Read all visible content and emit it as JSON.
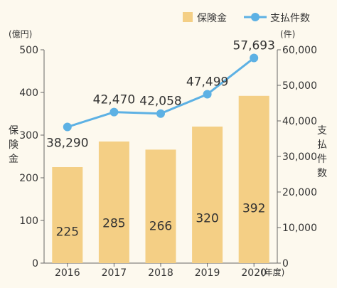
{
  "chart_data": {
    "type": "bar+line",
    "categories": [
      "2016",
      "2017",
      "2018",
      "2019",
      "2020"
    ],
    "x_unit": "(年度)",
    "series": [
      {
        "name": "保険金",
        "kind": "bar",
        "axis": "left",
        "values": [
          225,
          285,
          266,
          320,
          392
        ],
        "value_labels": [
          "225",
          "285",
          "266",
          "320",
          "392"
        ],
        "color": "#f4cf85"
      },
      {
        "name": "支払件数",
        "kind": "line",
        "axis": "right",
        "values": [
          38290,
          42470,
          42058,
          47499,
          57693
        ],
        "value_labels": [
          "38,290",
          "42,470",
          "42,058",
          "47,499",
          "57,693"
        ],
        "color": "#5db1e4"
      }
    ],
    "left_axis": {
      "unit": "(億円)",
      "title_chars": [
        "保",
        "険",
        "金"
      ],
      "ylim": [
        0,
        500
      ],
      "ticks": [
        0,
        100,
        200,
        300,
        400,
        500
      ],
      "tick_labels": [
        "0",
        "100",
        "200",
        "300",
        "400",
        "500"
      ]
    },
    "right_axis": {
      "unit": "(件)",
      "title_chars": [
        "支",
        "払",
        "件",
        "数"
      ],
      "ylim": [
        0,
        60000
      ],
      "ticks": [
        0,
        10000,
        20000,
        30000,
        40000,
        50000,
        60000
      ],
      "tick_labels": [
        "0",
        "10,000",
        "20,000",
        "30,000",
        "40,000",
        "50,000",
        "60,000"
      ]
    },
    "legend": {
      "placement": "top-right",
      "items": [
        "保険金",
        "支払件数"
      ]
    },
    "grid": false
  }
}
